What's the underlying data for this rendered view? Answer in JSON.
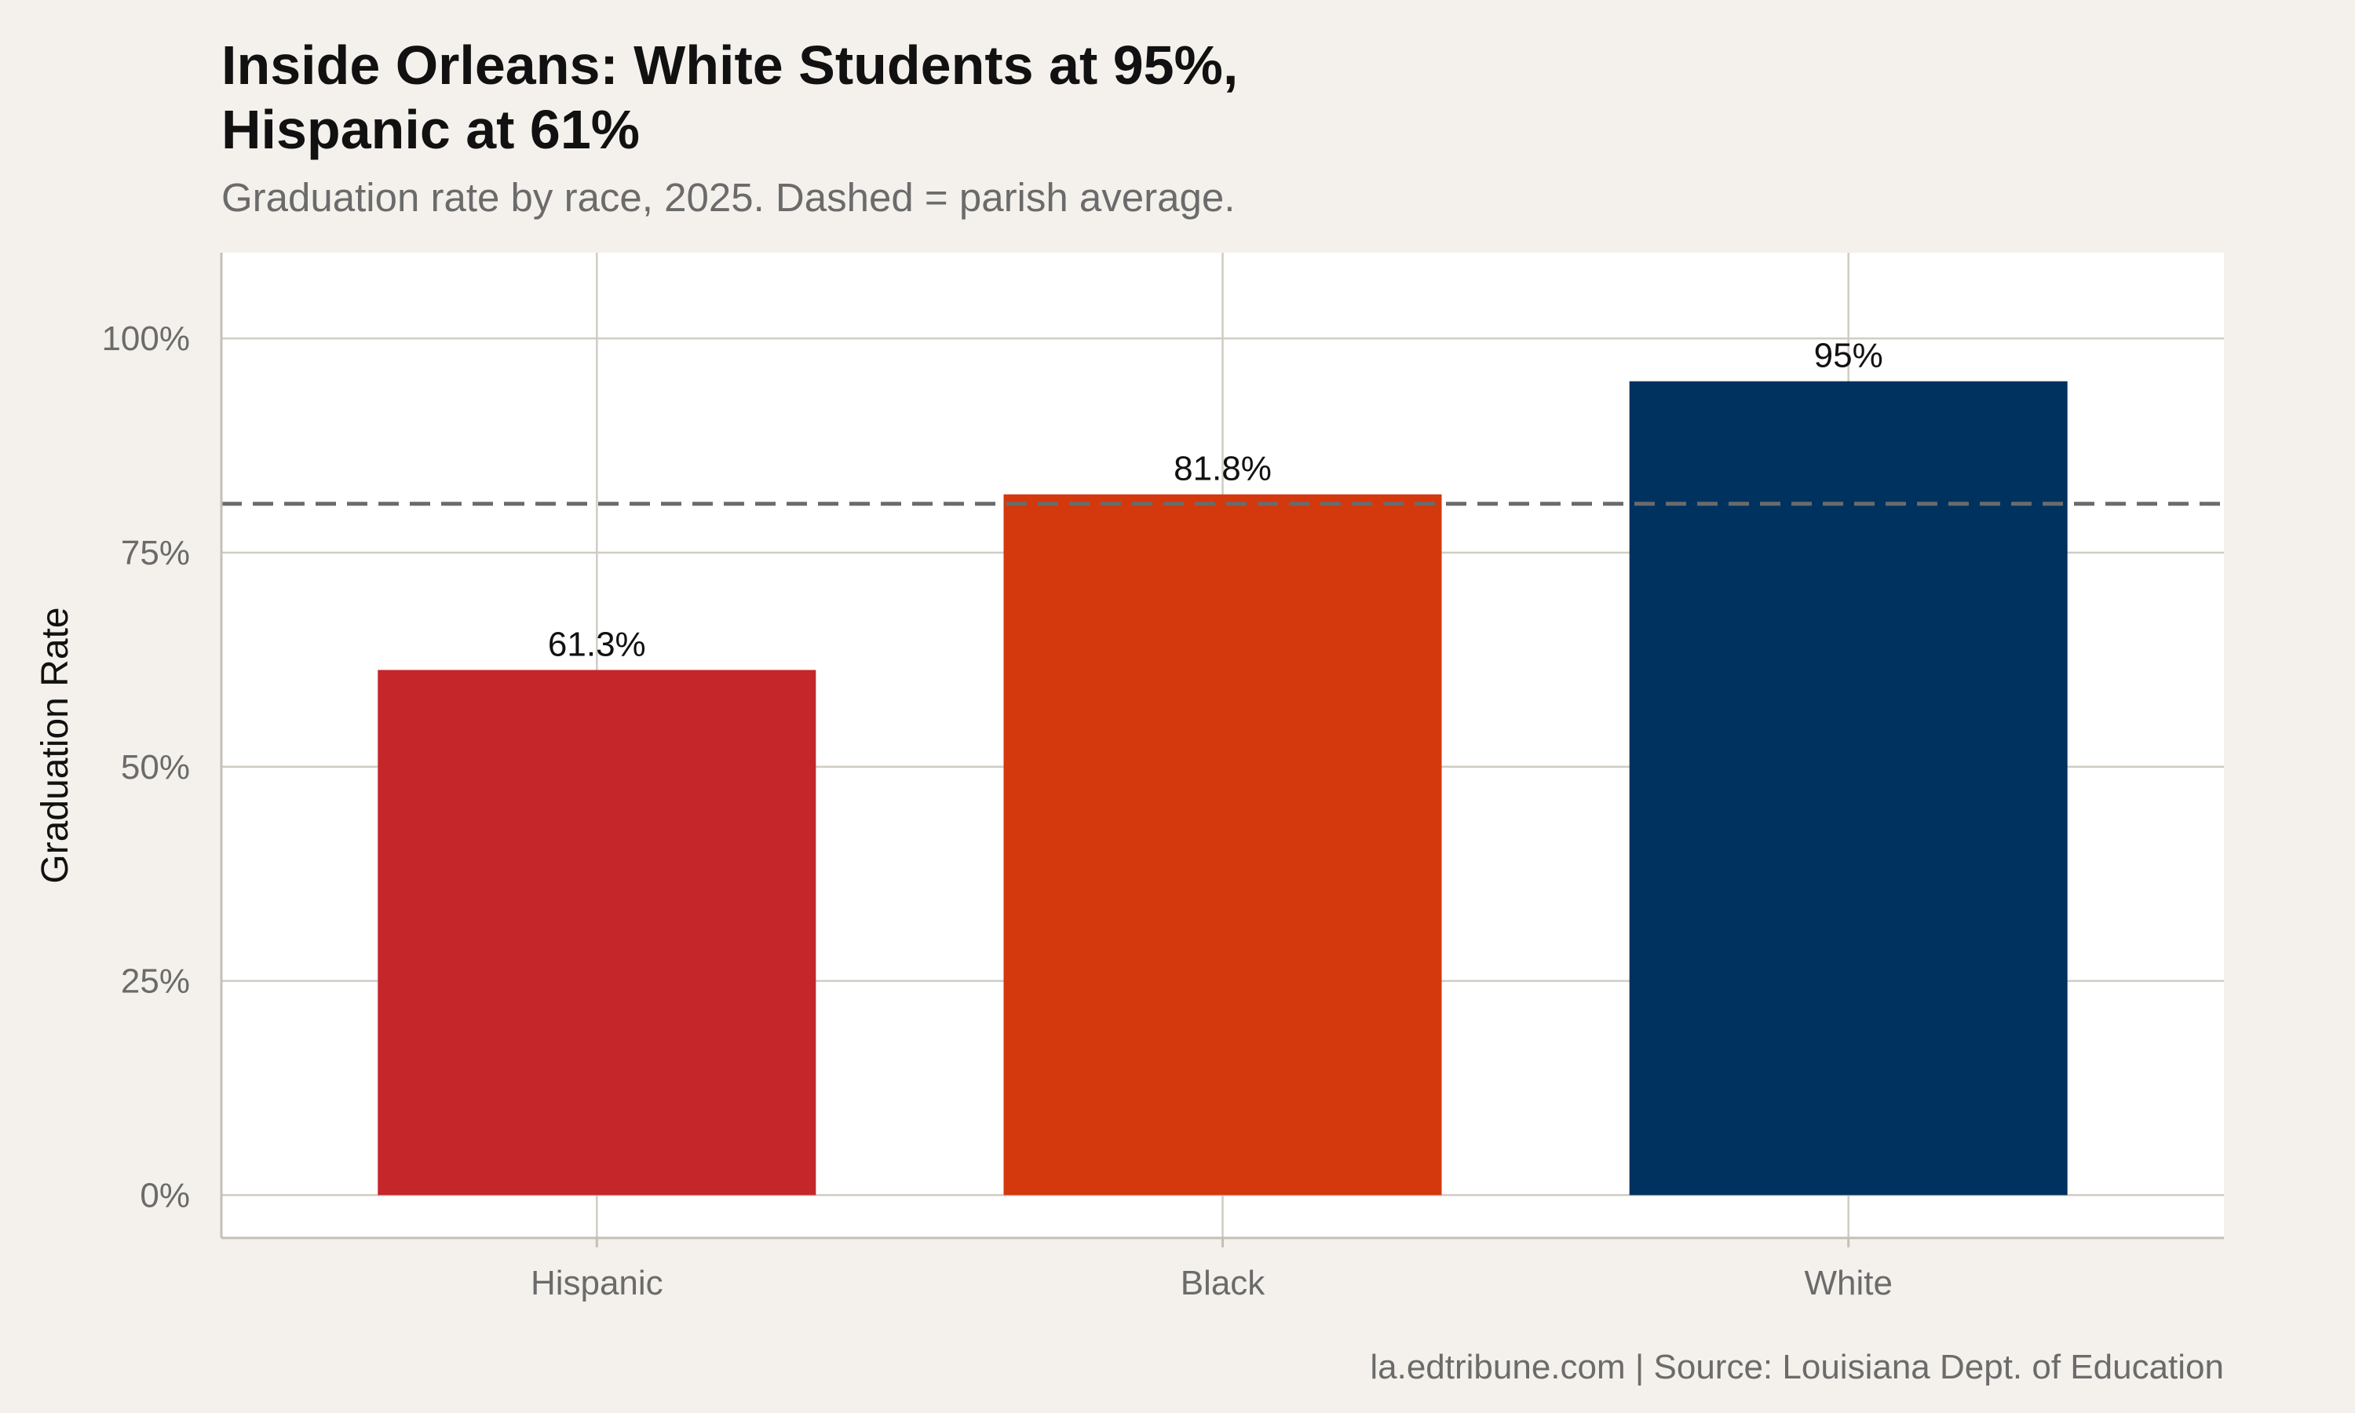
{
  "chart_data": {
    "type": "bar",
    "title_lines": [
      "Inside Orleans: White Students at 95%,",
      "Hispanic at 61%"
    ],
    "subtitle": "Graduation rate by race, 2025. Dashed = parish average.",
    "caption": "la.edtribune.com | Source: Louisiana Dept. of Education",
    "xlabel": "",
    "ylabel": "Graduation Rate",
    "categories": [
      "Hispanic",
      "Black",
      "White"
    ],
    "values": [
      61.3,
      81.8,
      95
    ],
    "value_labels": [
      "61.3%",
      "81.8%",
      "95%"
    ],
    "colors": [
      "#c4262a",
      "#d4380d",
      "#00325f"
    ],
    "reference_line": {
      "style": "dashed",
      "value": 80.7,
      "color": "#6b6b6b"
    },
    "yticks": [
      0,
      25,
      50,
      75,
      100
    ],
    "ytick_labels": [
      "0%",
      "25%",
      "50%",
      "75%",
      "100%"
    ],
    "ylim": [
      -5,
      110
    ],
    "grid": true,
    "background": "#f4f1ec",
    "panel_background": "#ffffff",
    "grid_color": "#d0ccc4"
  }
}
